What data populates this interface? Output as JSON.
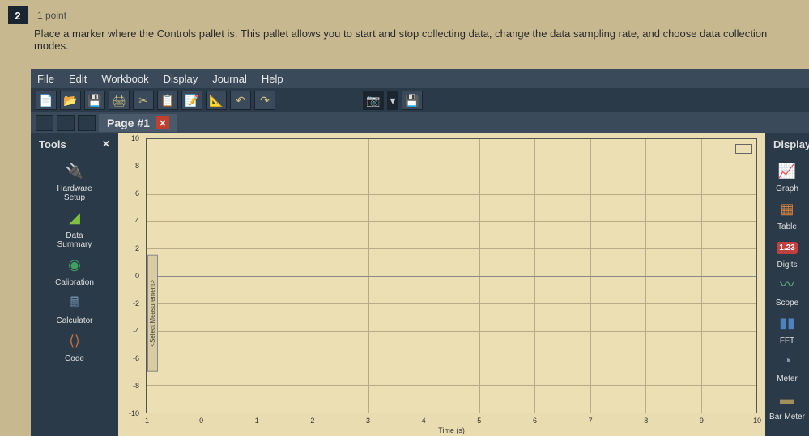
{
  "quiz": {
    "number": "2",
    "points": "1 point",
    "text": "Place a marker where the Controls pallet is. This pallet allows you to start and stop collecting data, change the data sampling rate, and choose data collection modes."
  },
  "menus": [
    "File",
    "Edit",
    "Workbook",
    "Display",
    "Journal",
    "Help"
  ],
  "toolbar_icons": [
    "📄",
    "📂",
    "💾",
    "🖨",
    "✂",
    "📋",
    "📝",
    "📐",
    "↶",
    "↷"
  ],
  "camera_icons": [
    "📷",
    "▾",
    "💾"
  ],
  "page_tab": {
    "label": "Page #1",
    "close": "✕"
  },
  "tools": {
    "title": "Tools",
    "items": [
      {
        "label": "Hardware\nSetup",
        "icon": "🔌",
        "color": "#6088b0"
      },
      {
        "label": "Data\nSummary",
        "icon": "◢",
        "color": "#80c040"
      },
      {
        "label": "Calibration",
        "icon": "◉",
        "color": "#40a060"
      },
      {
        "label": "Calculator",
        "icon": "🖩",
        "color": "#7090b0"
      },
      {
        "label": "Code",
        "icon": "⟨⟩",
        "color": "#c07040"
      }
    ]
  },
  "displays": {
    "title": "Displays",
    "items": [
      {
        "label": "Graph",
        "icon": "📈",
        "color": "#c04040"
      },
      {
        "label": "Table",
        "icon": "▦",
        "color": "#d08040"
      },
      {
        "label": "Digits",
        "icon": "1.23",
        "color": "#c04040"
      },
      {
        "label": "Scope",
        "icon": "〰",
        "color": "#60b080"
      },
      {
        "label": "FFT",
        "icon": "▮▮",
        "color": "#5080c0"
      },
      {
        "label": "Meter",
        "icon": "◔",
        "color": "#8898a8"
      },
      {
        "label": "Bar Meter",
        "icon": "▬",
        "color": "#a09060"
      }
    ]
  },
  "chart": {
    "xlabel": "Time (s)",
    "ylabel": "<Select Measurement>",
    "xlim": [
      -1,
      10
    ],
    "ylim": [
      -10,
      10
    ],
    "xticks": [
      -1,
      0,
      1,
      2,
      3,
      4,
      5,
      6,
      7,
      8,
      9,
      10
    ],
    "yticks": [
      -10,
      -8,
      -6,
      -4,
      -2,
      0,
      2,
      4,
      6,
      8,
      10
    ],
    "bg": "#ecdfb4",
    "grid": "#b8ac88"
  }
}
